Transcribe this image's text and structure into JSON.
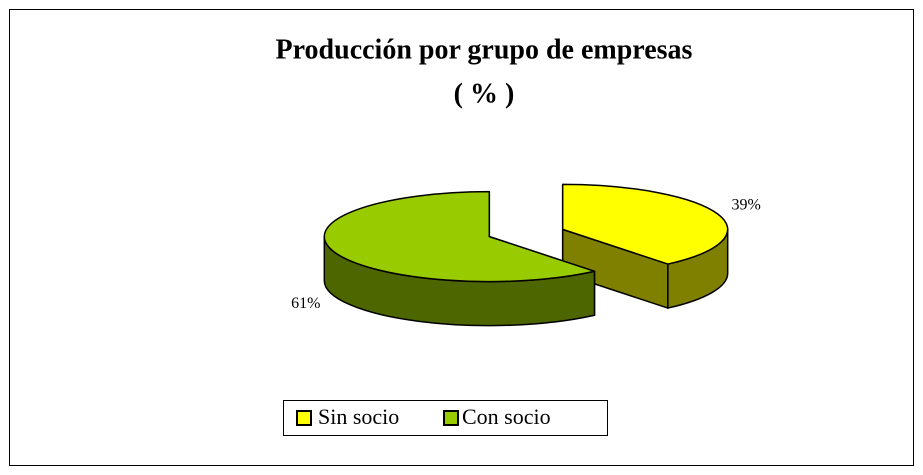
{
  "chart_data": {
    "type": "pie",
    "title": "Producción por grupo de empresas",
    "subtitle": "( % )",
    "categories": [
      "Sin socio",
      "Con socio"
    ],
    "values": [
      39,
      61
    ],
    "value_labels": [
      "39%",
      "61%"
    ],
    "colors": [
      "#ffff00",
      "#99cc00"
    ],
    "legend": "bottom"
  }
}
